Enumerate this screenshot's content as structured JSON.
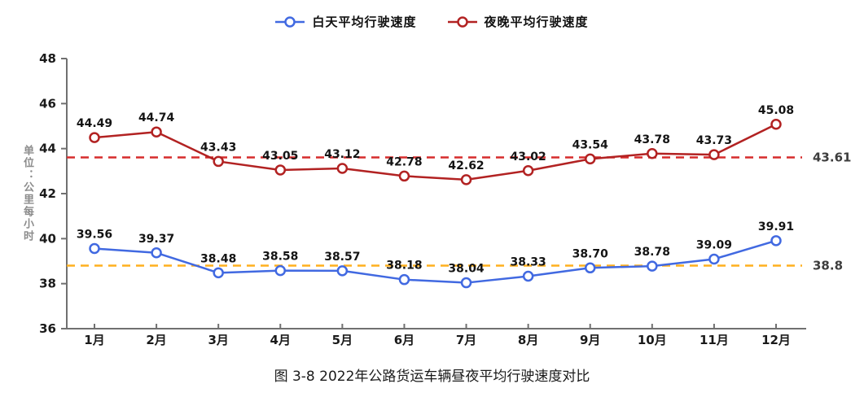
{
  "chart_data": {
    "type": "line",
    "caption": "图 3-8 2022年公路货运车辆昼夜平均行驶速度对比",
    "ylabel": "单位：公里每小时",
    "categories": [
      "1月",
      "2月",
      "3月",
      "4月",
      "5月",
      "6月",
      "7月",
      "8月",
      "9月",
      "10月",
      "11月",
      "12月"
    ],
    "series": [
      {
        "key": "day",
        "name": "白天平均行驶速度",
        "color": "#4169E1",
        "values": [
          39.56,
          39.37,
          38.48,
          38.58,
          38.57,
          38.18,
          38.04,
          38.33,
          38.7,
          38.78,
          39.09,
          39.91
        ],
        "labels": [
          "39.56",
          "39.37",
          "38.48",
          "38.58",
          "38.57",
          "38.18",
          "38.04",
          "38.33",
          "38.70",
          "38.78",
          "39.09",
          "39.91"
        ]
      },
      {
        "key": "night",
        "name": "夜晚平均行驶速度",
        "color": "#B22222",
        "values": [
          44.49,
          44.74,
          43.43,
          43.05,
          43.12,
          42.78,
          42.62,
          43.02,
          43.54,
          43.78,
          43.73,
          45.08
        ],
        "labels": [
          "44.49",
          "44.74",
          "43.43",
          "43.05",
          "43.12",
          "42.78",
          "42.62",
          "43.02",
          "43.54",
          "43.78",
          "43.73",
          "45.08"
        ]
      }
    ],
    "reference_lines": [
      {
        "key": "night-average",
        "value": 43.61,
        "label": "43.61",
        "color": "#D62C2C"
      },
      {
        "key": "day-average",
        "value": 38.8,
        "label": "38.8",
        "color": "#FFB01E"
      }
    ],
    "ylim": [
      36,
      48
    ],
    "ytick_step": 2,
    "grid": false,
    "legend_position": "top",
    "axis_color": "#707070"
  }
}
